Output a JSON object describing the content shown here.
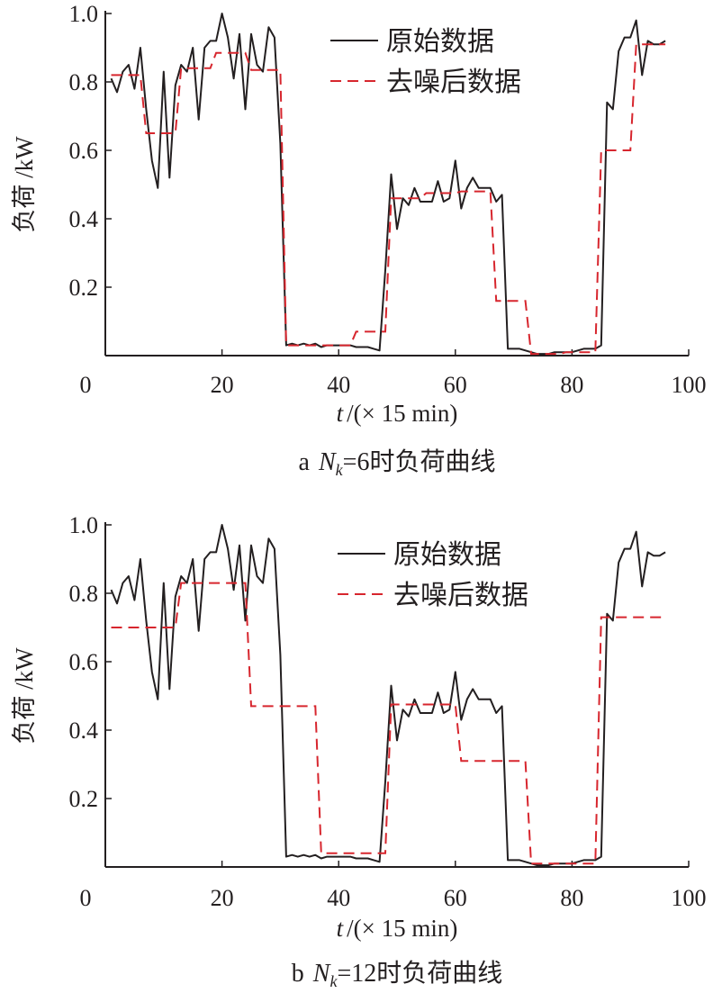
{
  "chart_data": [
    {
      "type": "line",
      "caption_prefix": "a",
      "caption_nk": "N",
      "caption_sub": "k",
      "caption_rest": "=6时负荷曲线",
      "xlabel_t": "t",
      "xlabel_rest": "/(× 15 min)",
      "ylabel": "负荷 /kW",
      "xlim": [
        0,
        100
      ],
      "ylim": [
        0,
        1.0
      ],
      "xticks": [
        "0",
        "20",
        "40",
        "60",
        "80",
        "100"
      ],
      "yticks": [
        "0.2",
        "0.4",
        "0.6",
        "0.8",
        "1.0"
      ],
      "legend": [
        "原始数据",
        "去噪后数据"
      ],
      "legend_position": "top-right",
      "colors": {
        "raw": "#231f20",
        "denoised": "#d7262e"
      },
      "series": [
        {
          "name": "原始数据",
          "style": "solid",
          "values": [
            0.81,
            0.77,
            0.83,
            0.85,
            0.78,
            0.9,
            0.72,
            0.57,
            0.49,
            0.83,
            0.52,
            0.79,
            0.85,
            0.83,
            0.9,
            0.69,
            0.9,
            0.92,
            0.92,
            1.0,
            0.93,
            0.81,
            0.94,
            0.72,
            0.94,
            0.85,
            0.83,
            0.96,
            0.93,
            0.62,
            0.03,
            0.035,
            0.03,
            0.035,
            0.03,
            0.035,
            0.025,
            0.03,
            0.03,
            0.03,
            0.03,
            0.03,
            0.025,
            0.025,
            0.025,
            0.02,
            0.015,
            0.25,
            0.53,
            0.37,
            0.46,
            0.44,
            0.49,
            0.45,
            0.45,
            0.45,
            0.51,
            0.45,
            0.46,
            0.57,
            0.43,
            0.49,
            0.52,
            0.49,
            0.49,
            0.49,
            0.45,
            0.47,
            0.02,
            0.02,
            0.02,
            0.015,
            0.01,
            0.005,
            0.005,
            0.005,
            0.01,
            0.01,
            0.01,
            0.01,
            0.015,
            0.02,
            0.02,
            0.02,
            0.03,
            0.74,
            0.72,
            0.89,
            0.93,
            0.93,
            0.98,
            0.82,
            0.92,
            0.91,
            0.91,
            0.92
          ]
        },
        {
          "name": "去噪后数据",
          "style": "dashed",
          "segment_length": 6,
          "segment_values": [
            0.82,
            0.65,
            0.84,
            0.885,
            0.835,
            0.03,
            0.03,
            0.07,
            0.46,
            0.475,
            0.48,
            0.16,
            0.005,
            0.01,
            0.6,
            0.91
          ]
        }
      ]
    },
    {
      "type": "line",
      "caption_prefix": "b",
      "caption_nk": "N",
      "caption_sub": "k",
      "caption_rest": "=12时负荷曲线",
      "xlabel_t": "t",
      "xlabel_rest": "/(× 15 min)",
      "ylabel": "负荷 /kW",
      "xlim": [
        0,
        100
      ],
      "ylim": [
        0,
        1.0
      ],
      "xticks": [
        "0",
        "20",
        "40",
        "60",
        "80",
        "100"
      ],
      "yticks": [
        "0.2",
        "0.4",
        "0.6",
        "0.8",
        "1.0"
      ],
      "legend": [
        "原始数据",
        "去噪后数据"
      ],
      "legend_position": "top-right",
      "colors": {
        "raw": "#231f20",
        "denoised": "#d7262e"
      },
      "series": [
        {
          "name": "原始数据",
          "style": "solid",
          "same_as_chart": 0
        },
        {
          "name": "去噪后数据",
          "style": "dashed",
          "segment_length": 12,
          "segment_values": [
            0.7,
            0.83,
            0.47,
            0.04,
            0.475,
            0.31,
            0.01,
            0.73
          ]
        }
      ]
    }
  ]
}
